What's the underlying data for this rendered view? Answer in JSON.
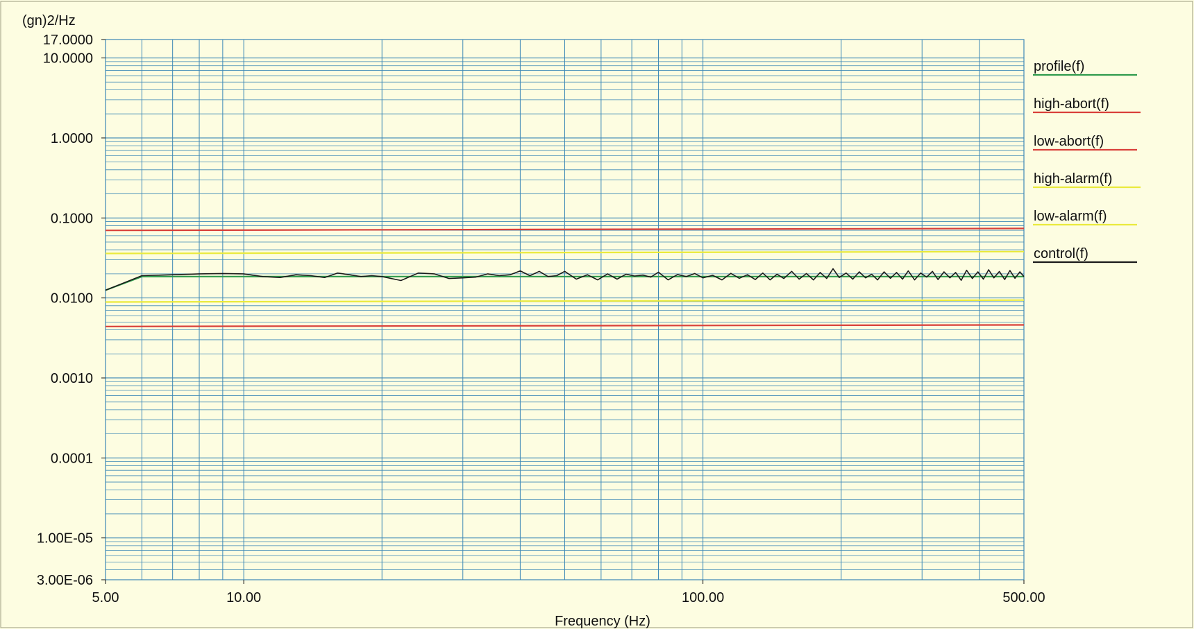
{
  "chart_data": {
    "type": "line",
    "title": "",
    "xlabel": "Frequency (Hz)",
    "ylabel": "(gn)2/Hz",
    "x_scale": "log",
    "y_scale": "log",
    "xlim": [
      5,
      500
    ],
    "ylim": [
      3e-06,
      17
    ],
    "grid": true,
    "legend_position": "right",
    "x_ticks": [
      {
        "value": 5,
        "label": "5.00"
      },
      {
        "value": 10,
        "label": "10.00"
      },
      {
        "value": 100,
        "label": "100.00"
      },
      {
        "value": 500,
        "label": "500.00"
      }
    ],
    "y_ticks": [
      {
        "value": 17,
        "label": "17.0000"
      },
      {
        "value": 10,
        "label": "10.0000"
      },
      {
        "value": 1,
        "label": "1.0000"
      },
      {
        "value": 0.1,
        "label": "0.1000"
      },
      {
        "value": 0.01,
        "label": "0.0100"
      },
      {
        "value": 0.001,
        "label": "0.0010"
      },
      {
        "value": 0.0001,
        "label": "0.0001"
      },
      {
        "value": 1e-05,
        "label": "1.00E-05"
      },
      {
        "value": 3e-06,
        "label": "3.00E-06"
      }
    ],
    "colors": {
      "background": "#fdfde1",
      "grid": "#3c88b6",
      "profile": "#2e9a4c",
      "abort": "#d9403a",
      "alarm": "#eaea3c",
      "control": "#1a1a1a"
    },
    "series": [
      {
        "name": "profile(f)",
        "color": "#2e9a4c",
        "x": [
          5,
          6,
          500
        ],
        "y": [
          0.0125,
          0.0185,
          0.0185
        ]
      },
      {
        "name": "high-abort(f)",
        "color": "#d9403a",
        "x": [
          5,
          500
        ],
        "y": [
          0.07,
          0.074
        ]
      },
      {
        "name": "low-abort(f)",
        "color": "#d9403a",
        "x": [
          5,
          500
        ],
        "y": [
          0.0044,
          0.0046
        ]
      },
      {
        "name": "high-alarm(f)",
        "color": "#eaea3c",
        "x": [
          5,
          500
        ],
        "y": [
          0.036,
          0.038
        ]
      },
      {
        "name": "low-alarm(f)",
        "color": "#eaea3c",
        "x": [
          5,
          500
        ],
        "y": [
          0.0089,
          0.0094
        ]
      },
      {
        "name": "control(f)",
        "color": "#1a1a1a",
        "x": [
          5,
          6,
          7,
          8,
          9,
          10,
          11,
          12,
          13,
          14,
          15,
          16,
          17,
          18,
          19,
          20,
          22,
          24,
          26,
          28,
          30,
          32,
          34,
          36,
          38,
          40,
          42,
          44,
          46,
          48,
          50,
          53,
          56,
          59,
          62,
          65,
          68,
          71,
          74,
          77,
          80,
          84,
          88,
          92,
          96,
          100,
          105,
          110,
          115,
          120,
          125,
          130,
          135,
          140,
          145,
          150,
          156,
          162,
          168,
          174,
          180,
          186,
          192,
          198,
          205,
          212,
          219,
          226,
          233,
          240,
          248,
          256,
          264,
          272,
          280,
          289,
          298,
          307,
          316,
          325,
          335,
          345,
          355,
          365,
          375,
          386,
          397,
          408,
          419,
          430,
          442,
          454,
          466,
          478,
          490,
          500
        ],
        "y": [
          0.0125,
          0.019,
          0.0195,
          0.02,
          0.0202,
          0.02,
          0.0185,
          0.018,
          0.0195,
          0.019,
          0.018,
          0.0205,
          0.0195,
          0.0185,
          0.019,
          0.0185,
          0.0165,
          0.0205,
          0.02,
          0.0175,
          0.0178,
          0.0182,
          0.02,
          0.019,
          0.0195,
          0.0218,
          0.019,
          0.0215,
          0.0185,
          0.019,
          0.0215,
          0.0172,
          0.0195,
          0.0168,
          0.02,
          0.0172,
          0.0198,
          0.0188,
          0.0193,
          0.0182,
          0.021,
          0.0168,
          0.0196,
          0.0185,
          0.0202,
          0.0178,
          0.0192,
          0.0168,
          0.0203,
          0.0176,
          0.0195,
          0.017,
          0.0205,
          0.0168,
          0.0198,
          0.0175,
          0.0215,
          0.0172,
          0.0202,
          0.0168,
          0.0208,
          0.0175,
          0.0232,
          0.018,
          0.0205,
          0.0172,
          0.0212,
          0.0178,
          0.0198,
          0.0168,
          0.0212,
          0.0176,
          0.0208,
          0.0172,
          0.0218,
          0.0168,
          0.0205,
          0.0182,
          0.0215,
          0.017,
          0.0212,
          0.0178,
          0.0208,
          0.0166,
          0.0222,
          0.0175,
          0.0212,
          0.0172,
          0.0225,
          0.0178,
          0.0214,
          0.017,
          0.022,
          0.0176,
          0.0212,
          0.0185
        ]
      }
    ]
  }
}
